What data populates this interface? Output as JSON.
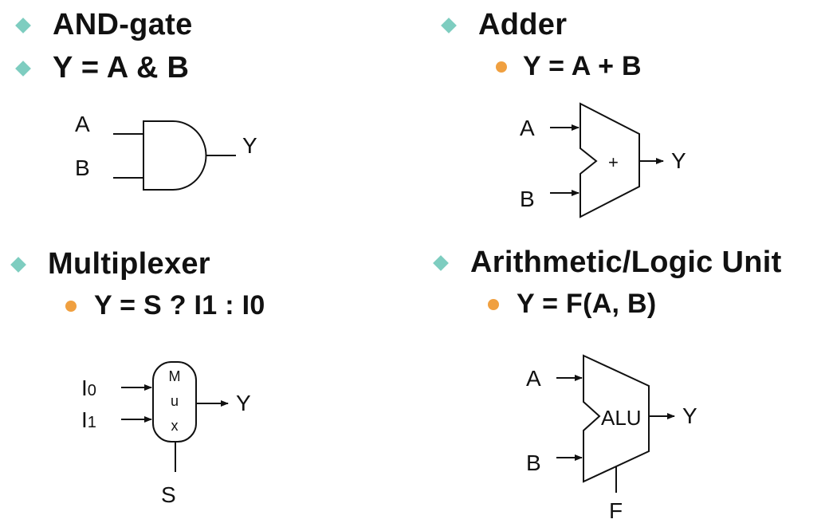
{
  "and_gate": {
    "heading": "AND-gate",
    "equation": "Y = A & B",
    "input_a": "A",
    "input_b": "B",
    "output": "Y"
  },
  "adder": {
    "heading": "Adder",
    "equation": "Y = A + B",
    "input_a": "A",
    "input_b": "B",
    "symbol": "+",
    "output": "Y"
  },
  "mux": {
    "heading": "Multiplexer",
    "equation": "Y = S ? I1 : I0",
    "input0": "I",
    "input0_sub": "0",
    "input1": "I",
    "input1_sub": "1",
    "label_m": "M",
    "label_u": "u",
    "label_x": "x",
    "select": "S",
    "output": "Y"
  },
  "alu": {
    "heading": "Arithmetic/Logic Unit",
    "equation": "Y = F(A, B)",
    "input_a": "A",
    "input_b": "B",
    "label": "ALU",
    "function": "F",
    "output": "Y"
  },
  "colors": {
    "diamond_bullet": "#7ecdc0",
    "dot_bullet": "#f0a040",
    "text": "#111111"
  }
}
